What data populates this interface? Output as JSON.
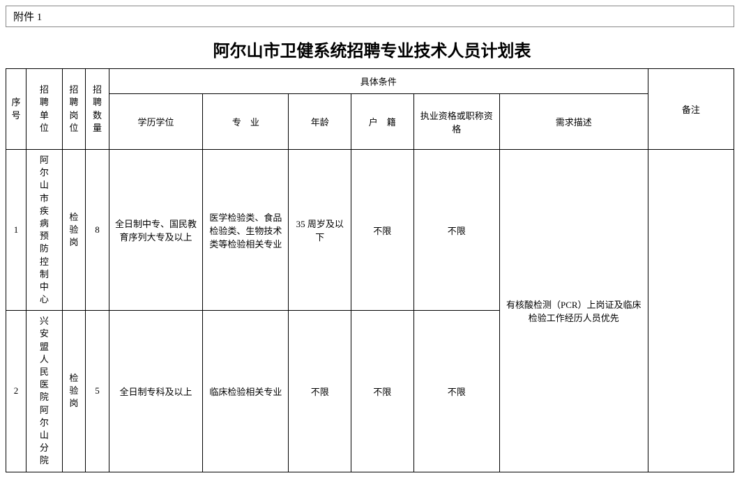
{
  "attachment_label": "附件 1",
  "title": "阿尔山市卫健系统招聘专业技术人员计划表",
  "headers": {
    "seq": "序号",
    "unit": "招聘单位",
    "position": "招聘岗位",
    "count": "招聘数量",
    "conditions": "具体条件",
    "edu": "学历学位",
    "major": "专　业",
    "age": "年龄",
    "huji": "户　籍",
    "qual": "执业资格或职称资格",
    "desc": "需求描述",
    "remark": "备注"
  },
  "rows": [
    {
      "seq": "1",
      "unit": "阿尔山市疾病预防控制中心",
      "position": "检验岗",
      "count": "8",
      "edu": "全日制中专、国民教育序列大专及以上",
      "major": "医学检验类、食品检验类、生物技术类等检验相关专业",
      "age": "35 周岁及以下",
      "huji": "不限",
      "qual": "不限",
      "remark": ""
    },
    {
      "seq": "2",
      "unit": "兴安盟人民医院阿尔山分院",
      "position": "检验岗",
      "count": "5",
      "edu": "全日制专科及以上",
      "major": "临床检验相关专业",
      "age": "不限",
      "huji": "不限",
      "qual": "不限",
      "remark": ""
    }
  ],
  "shared_desc": "有核酸检测（PCR）上岗证及临床检验工作经历人员优先",
  "styles": {
    "background_color": "#ffffff",
    "text_color": "#000000",
    "border_color": "#000000",
    "title_fontsize": 24,
    "body_fontsize": 13,
    "font_family_title": "SimHei",
    "font_family_body": "SimSun"
  }
}
